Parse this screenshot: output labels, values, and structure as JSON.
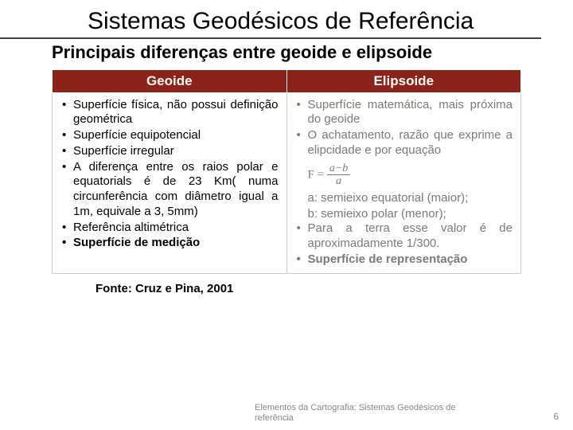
{
  "title": "Sistemas Geodésicos de Referência",
  "subtitle": "Principais diferenças entre geoide e elipsoide",
  "headers": {
    "left": "Geoide",
    "right": "Elipsoide"
  },
  "geoide_items": [
    "Superfície física, não possui definição geométrica",
    "Superfície equipotencial",
    "Superfície irregular",
    "A diferença entre os raios polar e equatorials é de 23 Km( numa circunferência com diâmetro igual a 1m, equivale a 3, 5mm)",
    "Referência altimétrica"
  ],
  "geoide_last_bold": "Superfície de medição",
  "elip_item1": "Superfície matemática, mais próxima do geoide",
  "elip_item2": "O achatamento, razão que exprime a elipcidade e por equação",
  "formula": {
    "lhs": "F =",
    "num": "a−b",
    "den": "a"
  },
  "def_a": "a: semieixo equatorial (maior);",
  "def_b": "b: semieixo polar (menor);",
  "elip_item3": "Para a terra esse valor é de aproximadamente 1/300.",
  "elip_last_bold": "Superfície de representação",
  "source": "Fonte: Cruz e Pina, 2001",
  "footer": "Elementos da Cartografia: Sistemas Geodésicos de referência",
  "page": "6",
  "colors": {
    "header_bg": "#8c2318",
    "header_fg": "#ffffff",
    "faded": "#7a7a7a",
    "footer": "#888888"
  }
}
